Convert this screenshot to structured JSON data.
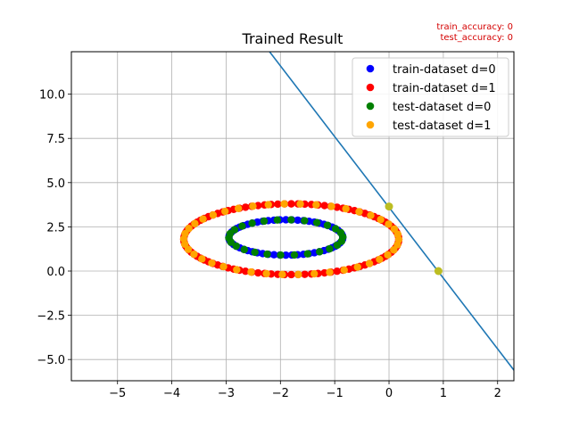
{
  "chart_data": {
    "type": "scatter",
    "title": "Trained Result",
    "annotations": [
      "train_accuracy: 0",
      "test_accuracy: 0"
    ],
    "xlabel": "",
    "ylabel": "",
    "xlim": [
      -5.85,
      2.3
    ],
    "ylim": [
      -6.2,
      12.4
    ],
    "xticks": [
      -5,
      -4,
      -3,
      -2,
      -1,
      0,
      1,
      2
    ],
    "yticks": [
      -5.0,
      -2.5,
      0.0,
      2.5,
      5.0,
      7.5,
      10.0
    ],
    "xtick_labels": [
      "−5",
      "−4",
      "−3",
      "−2",
      "−1",
      "0",
      "1",
      "2"
    ],
    "ytick_labels": [
      "−5.0",
      "−2.5",
      "0.0",
      "2.5",
      "5.0",
      "7.5",
      "10.0"
    ],
    "grid": true,
    "legend_position": "top-right",
    "series": [
      {
        "name": "train-dataset d=0",
        "color": "#0000ff",
        "shape": "ring",
        "center": [
          -1.9,
          1.9
        ],
        "radius": [
          1.05,
          1.0
        ],
        "count": 60,
        "phase": 0.0
      },
      {
        "name": "train-dataset d=1",
        "color": "#ff0000",
        "shape": "ring",
        "center": [
          -1.8,
          1.8
        ],
        "radius": [
          1.98,
          2.0
        ],
        "count": 100,
        "phase": 0.0
      },
      {
        "name": "test-dataset d=0",
        "color": "#008000",
        "shape": "ring",
        "center": [
          -1.9,
          1.9
        ],
        "radius": [
          1.05,
          1.0
        ],
        "count": 26,
        "phase": 0.12
      },
      {
        "name": "test-dataset d=1",
        "color": "#ffa500",
        "shape": "ring",
        "center": [
          -1.8,
          1.8
        ],
        "radius": [
          1.98,
          2.0
        ],
        "count": 42,
        "phase": 0.07
      }
    ],
    "decision_line": {
      "color": "#1f77b4",
      "points": [
        [
          -2.2,
          12.4
        ],
        [
          2.3,
          -5.6
        ]
      ]
    },
    "intercept_points": {
      "color": "#bcbd22",
      "points": [
        [
          0.0,
          3.65
        ],
        [
          0.91,
          0.0
        ]
      ]
    }
  }
}
